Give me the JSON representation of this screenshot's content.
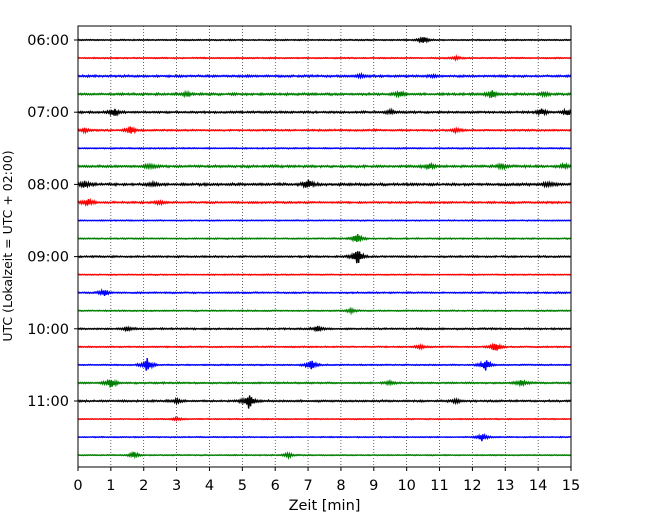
{
  "chart_data": {
    "type": "line",
    "title": "",
    "xlabel": "Zeit  [min]",
    "ylabel": "UTC (Lokalzeit = UTC + 02:00)",
    "xlim": [
      0,
      15
    ],
    "x_ticks": [
      0,
      1,
      2,
      3,
      4,
      5,
      6,
      7,
      8,
      9,
      10,
      11,
      12,
      13,
      14,
      15
    ],
    "y_tick_labels": [
      "06:00",
      "07:00",
      "08:00",
      "09:00",
      "10:00",
      "11:00"
    ],
    "grid": "vertical dotted lines at each minute",
    "trace_colors": [
      "#000000",
      "#ff0000",
      "#0000ff",
      "#008000"
    ],
    "trace_interval_minutes": 15,
    "start_time": "06:00",
    "series": [
      {
        "start": "06:00",
        "color": "#000000",
        "amp": 0.6,
        "events": [
          {
            "t": 10.5,
            "a": 4
          }
        ]
      },
      {
        "start": "06:15",
        "color": "#ff0000",
        "amp": 0.6,
        "events": [
          {
            "t": 11.5,
            "a": 1.5
          }
        ]
      },
      {
        "start": "06:30",
        "color": "#0000ff",
        "amp": 1.0,
        "events": [
          {
            "t": 8.6,
            "a": 1.8
          },
          {
            "t": 10.8,
            "a": 1.5
          }
        ]
      },
      {
        "start": "06:45",
        "color": "#008000",
        "amp": 1.1,
        "events": [
          {
            "t": 3.3,
            "a": 2
          },
          {
            "t": 9.8,
            "a": 3
          },
          {
            "t": 12.6,
            "a": 3.5
          },
          {
            "t": 14.2,
            "a": 2
          }
        ]
      },
      {
        "start": "07:00",
        "color": "#000000",
        "amp": 1.0,
        "events": [
          {
            "t": 1.1,
            "a": 4
          },
          {
            "t": 9.5,
            "a": 2
          },
          {
            "t": 14.1,
            "a": 3
          },
          {
            "t": 14.9,
            "a": 3
          }
        ]
      },
      {
        "start": "07:15",
        "color": "#ff0000",
        "amp": 0.8,
        "events": [
          {
            "t": 0.2,
            "a": 2
          },
          {
            "t": 1.6,
            "a": 4
          },
          {
            "t": 11.5,
            "a": 2
          }
        ]
      },
      {
        "start": "07:30",
        "color": "#0000ff",
        "amp": 0.6,
        "events": []
      },
      {
        "start": "07:45",
        "color": "#008000",
        "amp": 1.1,
        "events": [
          {
            "t": 2.2,
            "a": 1.8
          },
          {
            "t": 10.7,
            "a": 2.5
          },
          {
            "t": 12.9,
            "a": 2.5
          },
          {
            "t": 14.8,
            "a": 2.5
          }
        ]
      },
      {
        "start": "08:00",
        "color": "#000000",
        "amp": 1.2,
        "events": [
          {
            "t": 0.2,
            "a": 3
          },
          {
            "t": 2.3,
            "a": 2
          },
          {
            "t": 7.0,
            "a": 4.5
          },
          {
            "t": 14.3,
            "a": 2
          }
        ]
      },
      {
        "start": "08:15",
        "color": "#ff0000",
        "amp": 0.9,
        "events": [
          {
            "t": 0.3,
            "a": 3.5
          },
          {
            "t": 2.5,
            "a": 1.8
          }
        ]
      },
      {
        "start": "08:30",
        "color": "#0000ff",
        "amp": 0.5,
        "events": []
      },
      {
        "start": "08:45",
        "color": "#008000",
        "amp": 0.6,
        "events": [
          {
            "t": 8.5,
            "a": 5
          }
        ]
      },
      {
        "start": "09:00",
        "color": "#000000",
        "amp": 0.8,
        "events": [
          {
            "t": 8.5,
            "a": 8
          }
        ]
      },
      {
        "start": "09:15",
        "color": "#ff0000",
        "amp": 0.5,
        "events": []
      },
      {
        "start": "09:30",
        "color": "#0000ff",
        "amp": 0.7,
        "events": [
          {
            "t": 0.8,
            "a": 3.5
          }
        ]
      },
      {
        "start": "09:45",
        "color": "#008000",
        "amp": 0.6,
        "events": [
          {
            "t": 8.3,
            "a": 2
          }
        ]
      },
      {
        "start": "10:00",
        "color": "#000000",
        "amp": 0.8,
        "events": [
          {
            "t": 1.5,
            "a": 2
          },
          {
            "t": 7.3,
            "a": 2.5
          }
        ]
      },
      {
        "start": "10:15",
        "color": "#ff0000",
        "amp": 0.6,
        "events": [
          {
            "t": 10.4,
            "a": 2
          },
          {
            "t": 12.7,
            "a": 5
          }
        ]
      },
      {
        "start": "10:30",
        "color": "#0000ff",
        "amp": 0.6,
        "events": [
          {
            "t": 2.1,
            "a": 7
          },
          {
            "t": 7.1,
            "a": 5
          },
          {
            "t": 12.4,
            "a": 6
          }
        ]
      },
      {
        "start": "10:45",
        "color": "#008000",
        "amp": 0.8,
        "events": [
          {
            "t": 1.0,
            "a": 5
          },
          {
            "t": 9.5,
            "a": 2
          },
          {
            "t": 13.5,
            "a": 3
          }
        ]
      },
      {
        "start": "11:00",
        "color": "#000000",
        "amp": 0.9,
        "events": [
          {
            "t": 3.0,
            "a": 2
          },
          {
            "t": 5.2,
            "a": 8
          },
          {
            "t": 11.5,
            "a": 2
          }
        ]
      },
      {
        "start": "11:15",
        "color": "#ff0000",
        "amp": 0.5,
        "events": [
          {
            "t": 3.0,
            "a": 1.5
          }
        ]
      },
      {
        "start": "11:30",
        "color": "#0000ff",
        "amp": 0.5,
        "events": [
          {
            "t": 12.3,
            "a": 4
          }
        ]
      },
      {
        "start": "11:45",
        "color": "#008000",
        "amp": 0.5,
        "events": [
          {
            "t": 1.7,
            "a": 3
          },
          {
            "t": 6.4,
            "a": 2
          }
        ]
      }
    ]
  }
}
